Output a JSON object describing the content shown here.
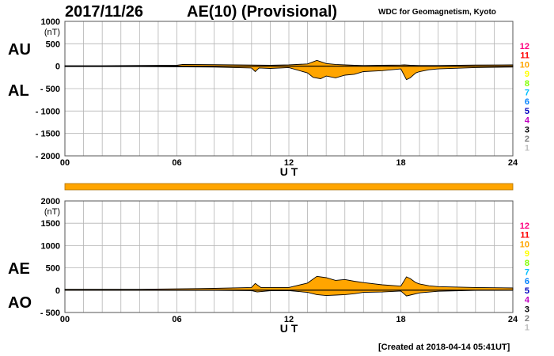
{
  "header": {
    "date": "2017/11/26",
    "title": "AE(10) (Provisional)",
    "source": "WDC for Geomagnetism, Kyoto"
  },
  "footer": {
    "created": "[Created at 2018-04-14 05:41UT]"
  },
  "colors": {
    "fill": "#ffa500",
    "line": "#000000",
    "grid": "#b4b4b4",
    "bar": "#ffa500"
  },
  "chart_data": [
    {
      "type": "area",
      "panel": "AU/AL",
      "ylabel_top": "AU",
      "ylabel_bottom": "AL",
      "unit": "(nT)",
      "xlabel": "U T",
      "xlim": [
        0,
        24
      ],
      "ylim": [
        -2000,
        1000
      ],
      "xticks": [
        "00",
        "06",
        "12",
        "18",
        "24"
      ],
      "yticks": [
        "1000",
        "500",
        "0",
        "- 500",
        "- 1000",
        "- 1500",
        "- 2000"
      ],
      "ytick_values": [
        1000,
        500,
        0,
        -500,
        -1000,
        -1500,
        -2000
      ],
      "grid": true,
      "series": [
        {
          "key": "AU",
          "x": [
            0,
            2,
            6,
            6.3,
            8,
            10,
            11,
            12,
            13,
            13.5,
            14,
            14.5,
            15,
            15.5,
            16,
            17,
            18,
            18.2,
            18.5,
            19,
            20,
            22,
            24
          ],
          "values": [
            10,
            10,
            20,
            40,
            35,
            25,
            20,
            30,
            50,
            130,
            60,
            40,
            30,
            20,
            15,
            20,
            25,
            30,
            20,
            15,
            15,
            25,
            30
          ]
        },
        {
          "key": "AL",
          "x": [
            0,
            4,
            8,
            10,
            10.2,
            10.4,
            11,
            12,
            13,
            13.3,
            13.7,
            14,
            14.5,
            15,
            15.5,
            16,
            17,
            18,
            18.3,
            18.5,
            18.8,
            19,
            19.5,
            20,
            22,
            24
          ],
          "values": [
            -10,
            -10,
            -20,
            -40,
            -120,
            -40,
            -50,
            -30,
            -150,
            -250,
            -280,
            -220,
            -260,
            -200,
            -180,
            -120,
            -100,
            -60,
            -300,
            -260,
            -150,
            -120,
            -80,
            -60,
            -30,
            -20
          ]
        }
      ]
    },
    {
      "type": "area",
      "panel": "AE/AO",
      "ylabel_top": "AE",
      "ylabel_bottom": "AO",
      "unit": "(nT)",
      "xlabel": "U T",
      "xlim": [
        0,
        24
      ],
      "ylim": [
        -500,
        2000
      ],
      "xticks": [
        "00",
        "06",
        "12",
        "18",
        "24"
      ],
      "yticks": [
        "2000",
        "1500",
        "1000",
        "500",
        "0",
        "- 500"
      ],
      "ytick_values": [
        2000,
        1500,
        1000,
        500,
        0,
        -500
      ],
      "grid": true,
      "series": [
        {
          "key": "AE",
          "x": [
            0,
            4,
            8,
            10,
            10.2,
            10.5,
            11,
            12,
            13,
            13.5,
            14,
            14.5,
            15,
            15.5,
            16,
            17,
            18,
            18.3,
            18.5,
            18.8,
            19,
            19.5,
            20,
            22,
            24
          ],
          "values": [
            20,
            20,
            40,
            60,
            150,
            60,
            60,
            60,
            160,
            310,
            280,
            220,
            240,
            200,
            170,
            120,
            90,
            300,
            260,
            170,
            140,
            100,
            80,
            60,
            50
          ]
        },
        {
          "key": "AO",
          "x": [
            0,
            4,
            8,
            10,
            10.3,
            11,
            12,
            13,
            13.5,
            14,
            14.5,
            15,
            15.5,
            16,
            17,
            18,
            18.3,
            18.5,
            19,
            20,
            22,
            24
          ],
          "values": [
            0,
            0,
            -5,
            -10,
            -40,
            -15,
            -10,
            -50,
            -100,
            -120,
            -110,
            -100,
            -80,
            -50,
            -40,
            -20,
            -130,
            -110,
            -60,
            -25,
            -5,
            0
          ]
        }
      ]
    }
  ],
  "station_legend": {
    "labels": [
      "12",
      "11",
      "10",
      "9",
      "8",
      "7",
      "6",
      "5",
      "4",
      "3",
      "2",
      "1"
    ],
    "colors": [
      "#ff0080",
      "#ff0000",
      "#ffa500",
      "#ffff00",
      "#80ff00",
      "#00c0ff",
      "#0080ff",
      "#0000c0",
      "#c000c0",
      "#000000",
      "#808080",
      "#c0c0c0"
    ]
  }
}
